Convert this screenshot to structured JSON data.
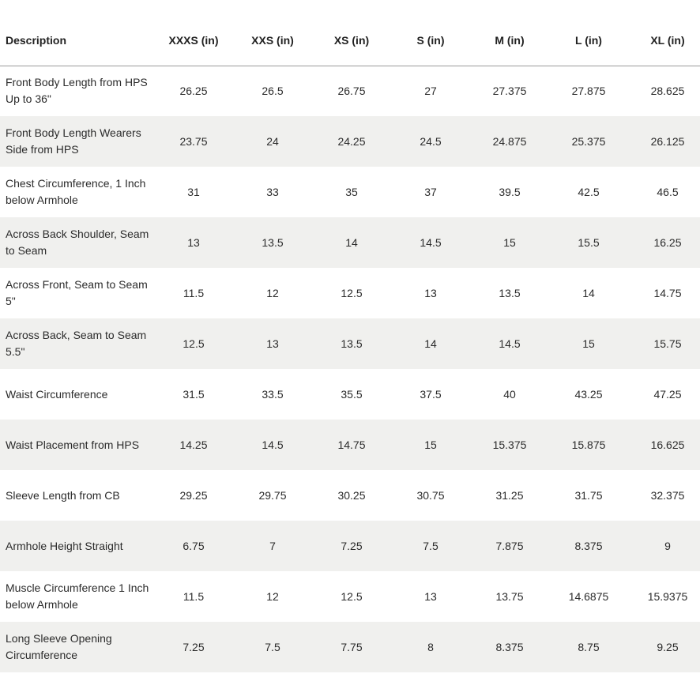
{
  "table": {
    "headers": [
      "Description",
      "XXXS (in)",
      "XXS (in)",
      "XS (in)",
      "S (in)",
      "M (in)",
      "L (in)",
      "XL (in)"
    ],
    "rows": [
      {
        "label": "Front Body Length from HPS Up to 36\"",
        "values": [
          "26.25",
          "26.5",
          "26.75",
          "27",
          "27.375",
          "27.875",
          "28.625"
        ]
      },
      {
        "label": "Front Body Length Wearers Side from HPS",
        "values": [
          "23.75",
          "24",
          "24.25",
          "24.5",
          "24.875",
          "25.375",
          "26.125"
        ]
      },
      {
        "label": "Chest Circumference, 1 Inch below Armhole",
        "values": [
          "31",
          "33",
          "35",
          "37",
          "39.5",
          "42.5",
          "46.5"
        ]
      },
      {
        "label": "Across Back Shoulder, Seam to Seam",
        "values": [
          "13",
          "13.5",
          "14",
          "14.5",
          "15",
          "15.5",
          "16.25"
        ]
      },
      {
        "label": "Across Front, Seam to Seam 5\"",
        "values": [
          "11.5",
          "12",
          "12.5",
          "13",
          "13.5",
          "14",
          "14.75"
        ]
      },
      {
        "label": "Across Back, Seam to Seam 5.5\"",
        "values": [
          "12.5",
          "13",
          "13.5",
          "14",
          "14.5",
          "15",
          "15.75"
        ]
      },
      {
        "label": "Waist Circumference",
        "values": [
          "31.5",
          "33.5",
          "35.5",
          "37.5",
          "40",
          "43.25",
          "47.25"
        ]
      },
      {
        "label": "Waist Placement from HPS",
        "values": [
          "14.25",
          "14.5",
          "14.75",
          "15",
          "15.375",
          "15.875",
          "16.625"
        ]
      },
      {
        "label": "Sleeve Length from CB",
        "values": [
          "29.25",
          "29.75",
          "30.25",
          "30.75",
          "31.25",
          "31.75",
          "32.375"
        ]
      },
      {
        "label": "Armhole Height Straight",
        "values": [
          "6.75",
          "7",
          "7.25",
          "7.5",
          "7.875",
          "8.375",
          "9"
        ]
      },
      {
        "label": "Muscle Circumference 1 Inch below Armhole",
        "values": [
          "11.5",
          "12",
          "12.5",
          "13",
          "13.75",
          "14.6875",
          "15.9375"
        ]
      },
      {
        "label": "Long Sleeve Opening Circumference",
        "values": [
          "7.25",
          "7.5",
          "7.75",
          "8",
          "8.375",
          "8.75",
          "9.25"
        ]
      }
    ]
  }
}
